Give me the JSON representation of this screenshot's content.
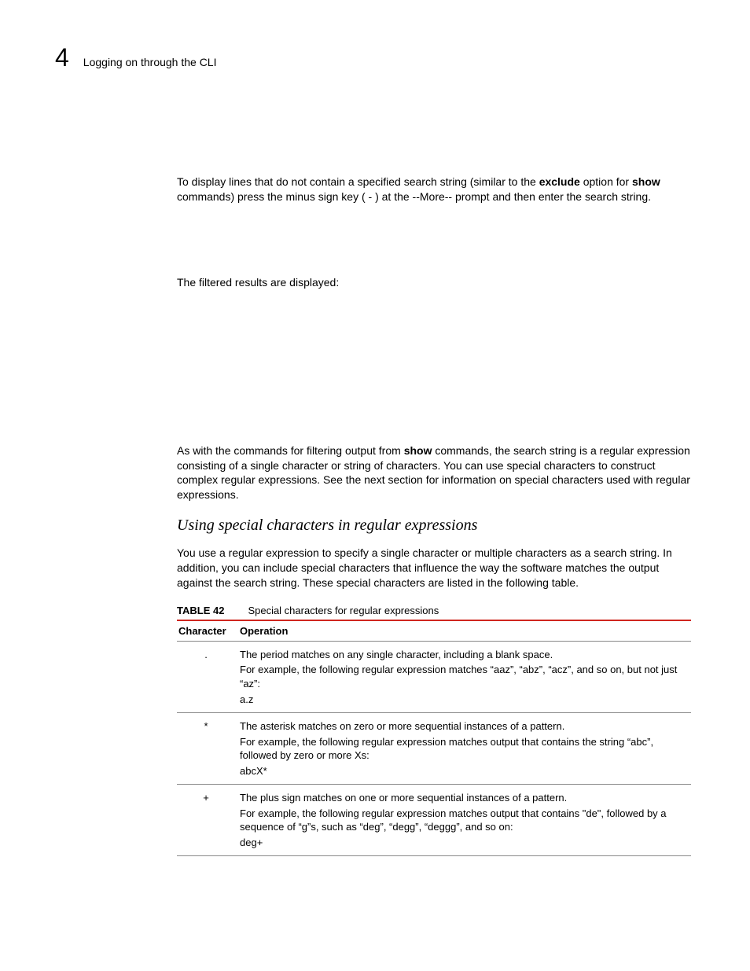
{
  "header": {
    "chapter_number": "4",
    "title": "Logging on through the CLI"
  },
  "paragraphs": {
    "p1_a": "To display lines that do not contain a specified search string (similar to the ",
    "p1_b": "exclude",
    "p1_c": " option for ",
    "p1_d": "show",
    "p1_e": " commands) press the minus sign key ( - ) at the --More-- prompt and then enter the search string.",
    "p2": "The filtered results are displayed:",
    "p3_a": "As with the commands for filtering output from ",
    "p3_b": "show",
    "p3_c": " commands, the search string is a regular expression consisting of a single character or string of characters.  You can use special characters to construct complex regular expressions.  See the next section for information on special characters used with regular expressions.",
    "heading": "Using special characters in regular expressions",
    "p4": "You use a regular expression to specify a single character or multiple characters as a search string. In addition, you can include special characters that influence the way the software matches the output against the search string. These special characters are listed in the following table."
  },
  "table": {
    "label": "TABLE 42",
    "caption": "Special characters for regular expressions",
    "col1": "Character",
    "col2": "Operation",
    "rows": [
      {
        "char": ".",
        "op": "The period matches on any single character, including a blank space.",
        "ex": "For example, the following regular expression matches “aaz”, “abz”, “acz”, and so on, but not just “az”:",
        "code": "a.z"
      },
      {
        "char": "*",
        "op": "The asterisk matches on zero or more sequential instances of a pattern.",
        "ex": "For example, the following regular expression matches output that contains the string “abc”, followed by zero or more Xs:",
        "code": "abcX*"
      },
      {
        "char": "+",
        "op": "The plus sign matches on one or more sequential instances of a pattern.",
        "ex": "For example, the following regular expression matches output that contains \"de\", followed by a sequence of “g”s, such as “deg”, “degg”, “deggg”, and so on:",
        "code": "deg+"
      }
    ]
  }
}
